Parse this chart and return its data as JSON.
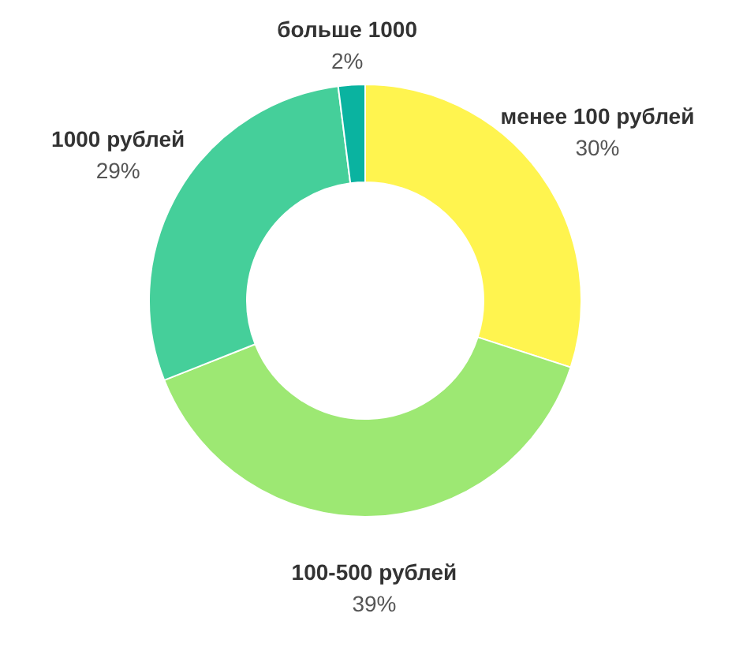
{
  "chart_data": {
    "type": "donut",
    "categories": [
      "менее 100 рублей",
      "100-500 рублей",
      "1000 рублей",
      "больше 1000"
    ],
    "values": [
      30,
      39,
      29,
      2
    ],
    "colors": [
      "#fff44f",
      "#9de873",
      "#45cf9a",
      "#0ab3a0"
    ],
    "value_labels": [
      "30%",
      "39%",
      "29%",
      "2%"
    ],
    "legend": false
  }
}
